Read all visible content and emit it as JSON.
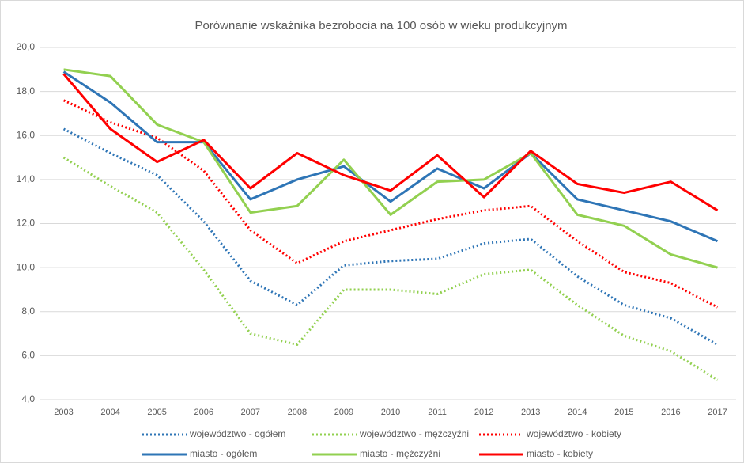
{
  "chart_data": {
    "type": "line",
    "title": "Porównanie wskaźnika bezrobocia na 100 osób w wieku produkcyjnym",
    "categories": [
      "2003",
      "2004",
      "2005",
      "2006",
      "2007",
      "2008",
      "2009",
      "2010",
      "2011",
      "2012",
      "2013",
      "2014",
      "2015",
      "2016",
      "2017"
    ],
    "series": [
      {
        "name": "województwo - ogółem",
        "color": "#2e75b6",
        "style": "dotted",
        "values": [
          16.3,
          15.2,
          14.2,
          12.1,
          9.4,
          8.3,
          10.1,
          10.3,
          10.4,
          11.1,
          11.3,
          9.6,
          8.3,
          7.7,
          6.5
        ]
      },
      {
        "name": "województwo - mężczyźni",
        "color": "#92d050",
        "style": "dotted",
        "values": [
          15.0,
          13.7,
          12.5,
          9.9,
          7.0,
          6.5,
          9.0,
          9.0,
          8.8,
          9.7,
          9.9,
          8.3,
          6.9,
          6.2,
          4.9
        ]
      },
      {
        "name": "województwo - kobiety",
        "color": "#ff0000",
        "style": "dotted",
        "values": [
          17.6,
          16.6,
          15.9,
          14.4,
          11.7,
          10.2,
          11.2,
          11.7,
          12.2,
          12.6,
          12.8,
          11.2,
          9.8,
          9.3,
          8.2
        ]
      },
      {
        "name": "miasto - ogółem",
        "color": "#2e75b6",
        "style": "solid",
        "values": [
          18.9,
          17.5,
          15.7,
          15.7,
          13.1,
          14.0,
          14.6,
          13.0,
          14.5,
          13.6,
          15.2,
          13.1,
          12.6,
          12.1,
          11.2
        ]
      },
      {
        "name": "miasto - mężczyźni",
        "color": "#92d050",
        "style": "solid",
        "values": [
          19.0,
          18.7,
          16.5,
          15.7,
          12.5,
          12.8,
          14.9,
          12.4,
          13.9,
          14.0,
          15.2,
          12.4,
          11.9,
          10.6,
          10.0
        ]
      },
      {
        "name": "miasto - kobiety",
        "color": "#ff0000",
        "style": "solid",
        "values": [
          18.8,
          16.3,
          14.8,
          15.8,
          13.6,
          15.2,
          14.2,
          13.5,
          15.1,
          13.2,
          15.3,
          13.8,
          13.4,
          13.9,
          12.6
        ]
      }
    ],
    "ylim": [
      4,
      20
    ],
    "yticks": [
      {
        "value": 4,
        "label": "4,0"
      },
      {
        "value": 6,
        "label": "6,0"
      },
      {
        "value": 8,
        "label": "8,0"
      },
      {
        "value": 10,
        "label": "10,0"
      },
      {
        "value": 12,
        "label": "12,0"
      },
      {
        "value": 14,
        "label": "14,0"
      },
      {
        "value": 16,
        "label": "16,0"
      },
      {
        "value": 18,
        "label": "18,0"
      },
      {
        "value": 20,
        "label": "20,0"
      }
    ],
    "grid": true,
    "legend": "bottom"
  }
}
